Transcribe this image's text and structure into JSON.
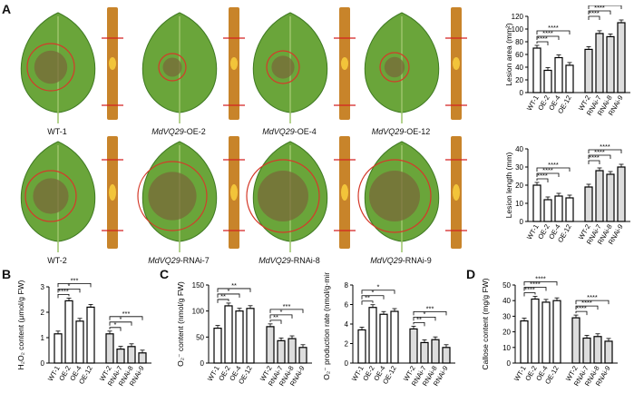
{
  "panels": {
    "A": "A",
    "B": "B",
    "C": "C",
    "D": "D"
  },
  "leaf_labels": [
    {
      "italic": "",
      "rest": "WT-1"
    },
    {
      "italic": "MdVQ29",
      "rest": "-OE-2"
    },
    {
      "italic": "MdVQ29",
      "rest": "-OE-4"
    },
    {
      "italic": "MdVQ29",
      "rest": "-OE-12"
    },
    {
      "italic": "",
      "rest": "WT-2"
    },
    {
      "italic": "MdVQ29",
      "rest": "-RNAi-7"
    },
    {
      "italic": "MdVQ29",
      "rest": "-RNAi-8"
    },
    {
      "italic": "MdVQ29",
      "rest": "-RNAi-9"
    }
  ],
  "colors": {
    "leaf": "#6aa53a",
    "leaf_dark": "#3f7a22",
    "lesion": "#7a6a3a",
    "circle": "#d43a2a",
    "stem": "#c8842a",
    "stem_lesion": "#f2c43a",
    "marker": "#d42020",
    "bar_oe": "#ffffff",
    "bar_rnai": "#dddddd"
  },
  "chart_data": [
    {
      "id": "lesion-area",
      "type": "bar",
      "ylabel": "Lesion area (mm²)",
      "ylim": [
        0,
        120
      ],
      "yticks": [
        0,
        20,
        40,
        60,
        80,
        100,
        120
      ],
      "categories": [
        "WT-1",
        "OE-2",
        "OE-4",
        "OE-12",
        "WT-2",
        "RNAi-7",
        "RNAi-8",
        "RNAi-9"
      ],
      "values": [
        70,
        35,
        55,
        43,
        68,
        93,
        88,
        110
      ],
      "brackets": [
        {
          "from": 0,
          "to": 1,
          "label": "****"
        },
        {
          "from": 0,
          "to": 2,
          "label": "****"
        },
        {
          "from": 0,
          "to": 3,
          "label": "****"
        },
        {
          "from": 4,
          "to": 5,
          "label": "****"
        },
        {
          "from": 4,
          "to": 6,
          "label": "****"
        },
        {
          "from": 4,
          "to": 7,
          "label": "****"
        }
      ]
    },
    {
      "id": "lesion-length",
      "type": "bar",
      "ylabel": "Lesion length (mm)",
      "ylim": [
        0,
        40
      ],
      "yticks": [
        0,
        10,
        20,
        30,
        40
      ],
      "categories": [
        "WT-1",
        "OE-2",
        "OE-4",
        "OE-12",
        "WT-2",
        "RNAi-7",
        "RNAi-8",
        "RNAi-9"
      ],
      "values": [
        20,
        12,
        14,
        13,
        19,
        28,
        26,
        30
      ],
      "brackets": [
        {
          "from": 0,
          "to": 1,
          "label": "****"
        },
        {
          "from": 0,
          "to": 2,
          "label": "****"
        },
        {
          "from": 0,
          "to": 3,
          "label": "****"
        },
        {
          "from": 4,
          "to": 5,
          "label": "****"
        },
        {
          "from": 4,
          "to": 6,
          "label": "****"
        },
        {
          "from": 4,
          "to": 7,
          "label": "****"
        }
      ]
    },
    {
      "id": "h2o2",
      "type": "bar",
      "ylabel": "H₂O₂ content (μmol/g FW)",
      "ylim": [
        0,
        3
      ],
      "yticks": [
        0,
        1,
        2,
        3
      ],
      "categories": [
        "WT-1",
        "OE-2",
        "OE-4",
        "OE-12",
        "WT-2",
        "RNAi-7",
        "RNAi-8",
        "RNAi-9"
      ],
      "values": [
        1.15,
        2.45,
        1.65,
        2.2,
        1.15,
        0.55,
        0.65,
        0.4
      ],
      "brackets": [
        {
          "from": 0,
          "to": 1,
          "label": "****"
        },
        {
          "from": 0,
          "to": 2,
          "label": "*"
        },
        {
          "from": 0,
          "to": 3,
          "label": "***"
        },
        {
          "from": 4,
          "to": 5,
          "label": "*"
        },
        {
          "from": 4,
          "to": 6,
          "label": "*"
        },
        {
          "from": 4,
          "to": 7,
          "label": "***"
        }
      ]
    },
    {
      "id": "o2-content",
      "type": "bar",
      "ylabel": "O₂⁻ content (nmol/g FW)",
      "ylim": [
        0,
        150
      ],
      "yticks": [
        0,
        50,
        100,
        150
      ],
      "categories": [
        "WT-1",
        "OE-2",
        "OE-4",
        "OE-12",
        "WT-2",
        "RNAi-7",
        "RNAi-8",
        "RNAi-9"
      ],
      "values": [
        67,
        110,
        100,
        105,
        70,
        43,
        47,
        30
      ],
      "brackets": [
        {
          "from": 0,
          "to": 1,
          "label": "**"
        },
        {
          "from": 0,
          "to": 2,
          "label": "*"
        },
        {
          "from": 0,
          "to": 3,
          "label": "**"
        },
        {
          "from": 4,
          "to": 5,
          "label": "**"
        },
        {
          "from": 4,
          "to": 6,
          "label": "*"
        },
        {
          "from": 4,
          "to": 7,
          "label": "***"
        }
      ]
    },
    {
      "id": "o2-rate",
      "type": "bar",
      "ylabel": "O₂⁻ production rate (nmol/g·min)",
      "ylim": [
        0,
        8
      ],
      "yticks": [
        0,
        2,
        4,
        6,
        8
      ],
      "categories": [
        "WT-1",
        "OE-2",
        "OE-4",
        "OE-12",
        "WT-2",
        "RNAi-7",
        "RNAi-8",
        "RNAi-9"
      ],
      "values": [
        3.4,
        5.7,
        5.0,
        5.3,
        3.5,
        2.1,
        2.4,
        1.6
      ],
      "brackets": [
        {
          "from": 0,
          "to": 1,
          "label": "**"
        },
        {
          "from": 0,
          "to": 2,
          "label": "*"
        },
        {
          "from": 0,
          "to": 3,
          "label": "*"
        },
        {
          "from": 4,
          "to": 5,
          "label": "**"
        },
        {
          "from": 4,
          "to": 6,
          "label": "*"
        },
        {
          "from": 4,
          "to": 7,
          "label": "***"
        }
      ]
    },
    {
      "id": "callose",
      "type": "bar",
      "ylabel": "Callose content (mg/g FW)",
      "ylim": [
        0,
        50
      ],
      "yticks": [
        0,
        10,
        20,
        30,
        40,
        50
      ],
      "categories": [
        "WT-1",
        "OE-2",
        "OE-4",
        "OE-12",
        "WT-2",
        "RNAi-7",
        "RNAi-8",
        "RNAi-9"
      ],
      "values": [
        27,
        41,
        39,
        40,
        29,
        16,
        17,
        14
      ],
      "brackets": [
        {
          "from": 0,
          "to": 1,
          "label": "****"
        },
        {
          "from": 0,
          "to": 2,
          "label": "****"
        },
        {
          "from": 0,
          "to": 3,
          "label": "****"
        },
        {
          "from": 4,
          "to": 5,
          "label": "****"
        },
        {
          "from": 4,
          "to": 6,
          "label": "****"
        },
        {
          "from": 4,
          "to": 7,
          "label": "****"
        }
      ]
    }
  ]
}
